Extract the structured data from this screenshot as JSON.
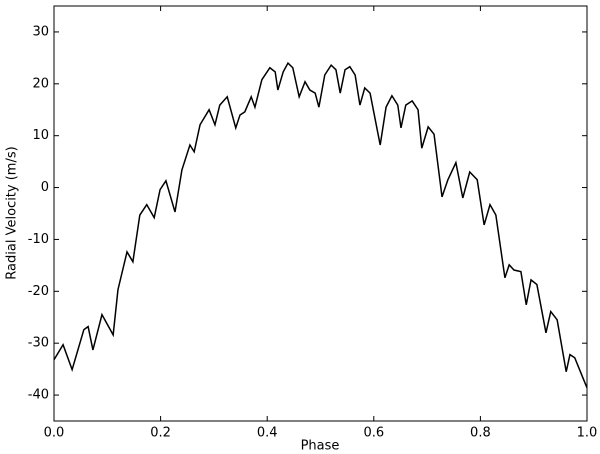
{
  "chart_data": {
    "type": "line",
    "xlabel": "Phase",
    "ylabel": "Radial Velocity (m/s)",
    "xlim": [
      0,
      1
    ],
    "ylim": [
      -45,
      35
    ],
    "xticks": [
      {
        "value": 0,
        "label": "0.0"
      },
      0.2,
      0.4,
      0.6,
      0.8,
      {
        "value": 1,
        "label": "1.0"
      }
    ],
    "yticks": [
      -40,
      -30,
      -20,
      -10,
      0,
      10,
      20,
      30
    ],
    "grid": false,
    "series": [
      {
        "color": "#000000",
        "x": [
          0,
          0.017,
          0.034,
          0.056,
          0.064,
          0.073,
          0.09,
          0.111,
          0.12,
          0.137,
          0.148,
          0.161,
          0.174,
          0.188,
          0.199,
          0.21,
          0.227,
          0.24,
          0.255,
          0.263,
          0.274,
          0.291,
          0.302,
          0.311,
          0.325,
          0.341,
          0.349,
          0.358,
          0.37,
          0.377,
          0.39,
          0.405,
          0.415,
          0.42,
          0.43,
          0.439,
          0.448,
          0.46,
          0.471,
          0.48,
          0.49,
          0.497,
          0.508,
          0.52,
          0.529,
          0.537,
          0.546,
          0.555,
          0.565,
          0.574,
          0.583,
          0.593,
          0.612,
          0.623,
          0.634,
          0.645,
          0.651,
          0.66,
          0.672,
          0.683,
          0.69,
          0.702,
          0.713,
          0.728,
          0.739,
          0.754,
          0.767,
          0.78,
          0.794,
          0.807,
          0.818,
          0.829,
          0.846,
          0.854,
          0.863,
          0.876,
          0.886,
          0.895,
          0.906,
          0.923,
          0.932,
          0.944,
          0.961,
          0.968,
          0.977,
          0.99,
          1
        ],
        "values": [
          -33.2,
          -30.3,
          -35.1,
          -27.4,
          -26.8,
          -31.3,
          -24.5,
          -28.4,
          -19.7,
          -12.4,
          -14.3,
          -5.3,
          -3.3,
          -5.8,
          -0.4,
          1.3,
          -4.7,
          3.4,
          8.2,
          6.9,
          12.1,
          15,
          12.1,
          15.9,
          17.5,
          11.5,
          14,
          14.6,
          17.5,
          15.5,
          20.8,
          23.1,
          22.3,
          18.8,
          22.3,
          24,
          23.1,
          17.5,
          20.4,
          18.8,
          18.2,
          15.5,
          21.7,
          23.6,
          22.7,
          18.2,
          22.7,
          23.3,
          21.7,
          15.9,
          19.2,
          18.2,
          8.2,
          15.5,
          17.7,
          15.9,
          11.5,
          15.9,
          16.7,
          15,
          7.6,
          11.7,
          10.3,
          -1.8,
          1.5,
          4.8,
          -2,
          3,
          1.5,
          -7.2,
          -3.3,
          -5.3,
          -17.4,
          -14.9,
          -15.9,
          -16.2,
          -22.6,
          -17.8,
          -18.7,
          -28,
          -23.9,
          -25.5,
          -35.5,
          -32.2,
          -32.8,
          -36.1,
          -38.6
        ]
      }
    ]
  }
}
